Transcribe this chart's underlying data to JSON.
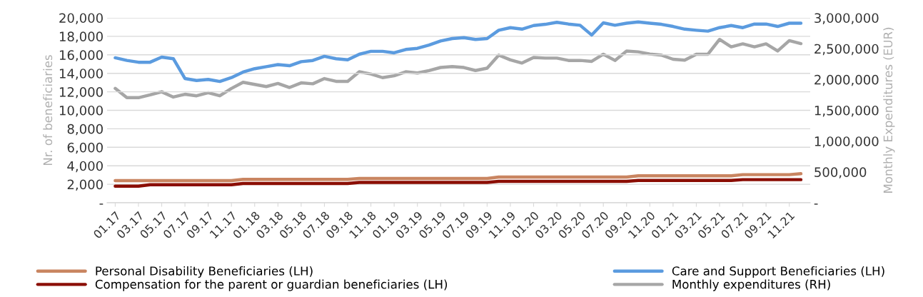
{
  "chart_data": {
    "type": "line",
    "ylabel": "Nr. of beneficiaries",
    "y2label": "Monthly Expenditures (EUR)",
    "categories": [
      "01.17",
      null,
      "03.17",
      null,
      "05.17",
      null,
      "07.17",
      null,
      "09.17",
      null,
      "11.17",
      null,
      "01.18",
      null,
      "03.18",
      null,
      "05.18",
      null,
      "07.18",
      null,
      "09.18",
      null,
      "11.18",
      null,
      "01.19",
      null,
      "03.19",
      null,
      "05.19",
      null,
      "07.19",
      null,
      "09.19",
      null,
      "11.19",
      null,
      "01.20",
      null,
      "03.20",
      null,
      "05.20",
      null,
      "07.20",
      null,
      "09.20",
      null,
      "11.20",
      null,
      "01.21",
      null,
      "03.21",
      null,
      "05.21",
      null,
      "07.21",
      null,
      "09.21",
      null,
      "11.21",
      null
    ],
    "series": [
      {
        "name": "Personal Disability Beneficiaries (LH)",
        "color": "#c98561",
        "values": [
          2400,
          2400,
          2400,
          2400,
          2400,
          2400,
          2400,
          2400,
          2400,
          2400,
          2400,
          2530,
          2530,
          2530,
          2530,
          2530,
          2530,
          2530,
          2530,
          2530,
          2530,
          2620,
          2620,
          2620,
          2620,
          2620,
          2620,
          2620,
          2620,
          2620,
          2620,
          2620,
          2620,
          2780,
          2780,
          2780,
          2780,
          2780,
          2780,
          2780,
          2780,
          2780,
          2780,
          2780,
          2780,
          2910,
          2910,
          2910,
          2910,
          2910,
          2910,
          2910,
          2910,
          2910,
          3040,
          3040,
          3040,
          3040,
          3040,
          3140
        ]
      },
      {
        "name": "Compensation for the parent or guardian beneficiaries (LH)",
        "color": "#8b0e04",
        "values": [
          1800,
          1800,
          1800,
          1950,
          1950,
          1950,
          1950,
          1950,
          1950,
          1950,
          1950,
          2080,
          2080,
          2080,
          2080,
          2080,
          2080,
          2080,
          2080,
          2080,
          2080,
          2200,
          2200,
          2200,
          2200,
          2200,
          2200,
          2200,
          2200,
          2200,
          2200,
          2200,
          2200,
          2320,
          2320,
          2320,
          2320,
          2320,
          2320,
          2320,
          2320,
          2320,
          2320,
          2320,
          2320,
          2420,
          2420,
          2420,
          2420,
          2420,
          2420,
          2420,
          2420,
          2420,
          2500,
          2500,
          2500,
          2500,
          2500,
          2500
        ]
      },
      {
        "name": "Care and Support Beneficiaries (LH)",
        "color": "#5b9bdf",
        "values": [
          15680,
          15400,
          15200,
          15200,
          15750,
          15580,
          13440,
          13220,
          13340,
          13120,
          13540,
          14140,
          14500,
          14720,
          14940,
          14820,
          15260,
          15390,
          15840,
          15580,
          15460,
          16060,
          16380,
          16380,
          16220,
          16580,
          16700,
          17060,
          17500,
          17760,
          17860,
          17660,
          17760,
          18660,
          18940,
          18780,
          19170,
          19300,
          19520,
          19330,
          19200,
          18140,
          19460,
          19200,
          19420,
          19550,
          19420,
          19300,
          19070,
          18780,
          18660,
          18560,
          18940,
          19170,
          18940,
          19330,
          19330,
          19070,
          19420,
          19420
        ]
      },
      {
        "name": "Monthly expenditures (RH)",
        "color": "#a6a6a6",
        "axis": "y2",
        "values": [
          1855000,
          1705000,
          1705000,
          1750000,
          1800000,
          1715000,
          1760000,
          1735000,
          1785000,
          1735000,
          1855000,
          1955000,
          1920000,
          1885000,
          1935000,
          1870000,
          1945000,
          1930000,
          2015000,
          1970000,
          1970000,
          2125000,
          2090000,
          2030000,
          2060000,
          2125000,
          2105000,
          2145000,
          2195000,
          2210000,
          2194000,
          2146000,
          2184000,
          2395000,
          2318000,
          2266000,
          2357000,
          2347000,
          2347000,
          2309000,
          2309000,
          2294000,
          2410000,
          2309000,
          2462000,
          2448000,
          2414000,
          2395000,
          2328000,
          2314000,
          2410000,
          2410000,
          2650000,
          2530000,
          2578000,
          2530000,
          2578000,
          2462000,
          2630000,
          2582000
        ]
      }
    ],
    "ylim": [
      0,
      20000
    ],
    "yticks": [
      {
        "value": 0,
        "label": "-"
      },
      {
        "value": 2000,
        "label": "2,000"
      },
      {
        "value": 4000,
        "label": "4,000"
      },
      {
        "value": 6000,
        "label": "6,000"
      },
      {
        "value": 8000,
        "label": "8,000"
      },
      {
        "value": 10000,
        "label": "10,000"
      },
      {
        "value": 12000,
        "label": "12,000"
      },
      {
        "value": 14000,
        "label": "14,000"
      },
      {
        "value": 16000,
        "label": "16,000"
      },
      {
        "value": 18000,
        "label": "18,000"
      },
      {
        "value": 20000,
        "label": "20,000"
      }
    ],
    "y2lim": [
      0,
      3000000
    ],
    "y2ticks": [
      {
        "value": 0,
        "label": "-"
      },
      {
        "value": 500000,
        "label": "500,000"
      },
      {
        "value": 1000000,
        "label": "1,000,000"
      },
      {
        "value": 1500000,
        "label": "1,500,000"
      },
      {
        "value": 2000000,
        "label": "2,000,000"
      },
      {
        "value": 2500000,
        "label": "2,500,000"
      },
      {
        "value": 3000000,
        "label": "3,000,000"
      }
    ],
    "grid": "y",
    "legend": "bottom",
    "marker": "none",
    "line_style": "solid"
  }
}
